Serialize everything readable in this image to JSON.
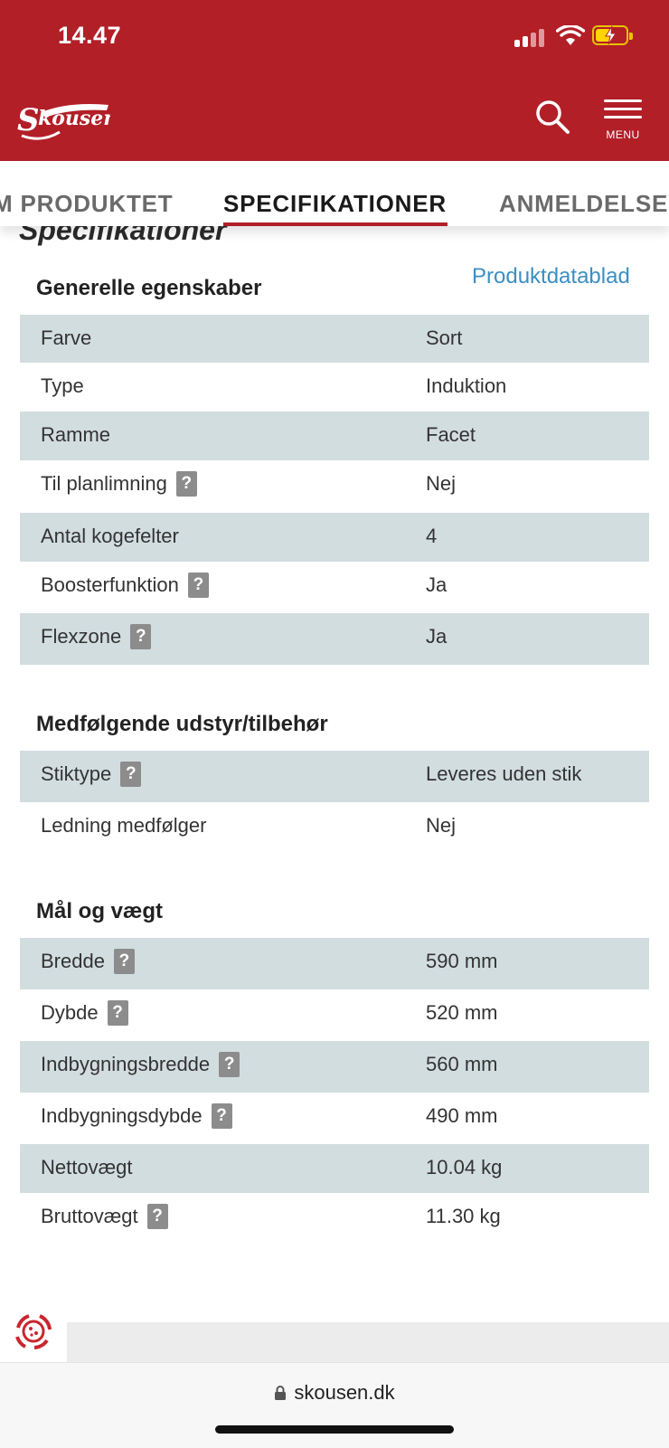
{
  "status_bar": {
    "time": "14.47"
  },
  "header": {
    "menu_label": "MENU"
  },
  "tabs": [
    {
      "label": "M PRODUKTET",
      "active": false
    },
    {
      "label": "SPECIFIKATIONER",
      "active": true
    },
    {
      "label": "ANMELDELSE",
      "active": false
    }
  ],
  "page_heading": "Specifikationer",
  "datasheet_link": "Produktdatablad",
  "sections": [
    {
      "title": "Generelle egenskaber",
      "rows": [
        {
          "label": "Farve",
          "value": "Sort",
          "help": false
        },
        {
          "label": "Type",
          "value": "Induktion",
          "help": false
        },
        {
          "label": "Ramme",
          "value": "Facet",
          "help": false
        },
        {
          "label": "Til planlimning",
          "value": "Nej",
          "help": true
        },
        {
          "label": "Antal kogefelter",
          "value": "4",
          "help": false
        },
        {
          "label": "Boosterfunktion",
          "value": "Ja",
          "help": true
        },
        {
          "label": "Flexzone",
          "value": "Ja",
          "help": true
        }
      ]
    },
    {
      "title": "Medfølgende udstyr/tilbehør",
      "rows": [
        {
          "label": "Stiktype",
          "value": "Leveres uden stik",
          "help": true
        },
        {
          "label": "Ledning medfølger",
          "value": "Nej",
          "help": false
        }
      ]
    },
    {
      "title": "Mål og vægt",
      "rows": [
        {
          "label": "Bredde",
          "value": "590 mm",
          "help": true
        },
        {
          "label": "Dybde",
          "value": "520 mm",
          "help": true
        },
        {
          "label": "Indbygningsbredde",
          "value": "560 mm",
          "help": true
        },
        {
          "label": "Indbygningsdybde",
          "value": "490 mm",
          "help": true
        },
        {
          "label": "Nettovægt",
          "value": "10.04 kg",
          "help": false
        },
        {
          "label": "Bruttovægt",
          "value": "11.30 kg",
          "help": true
        }
      ]
    }
  ],
  "help_icon_glyph": "?",
  "url_bar": {
    "domain": "skousen.dk"
  },
  "colors": {
    "brand_red": "#b21f27",
    "row_shade": "#d2dde0",
    "link_blue": "#3a8fc5"
  }
}
